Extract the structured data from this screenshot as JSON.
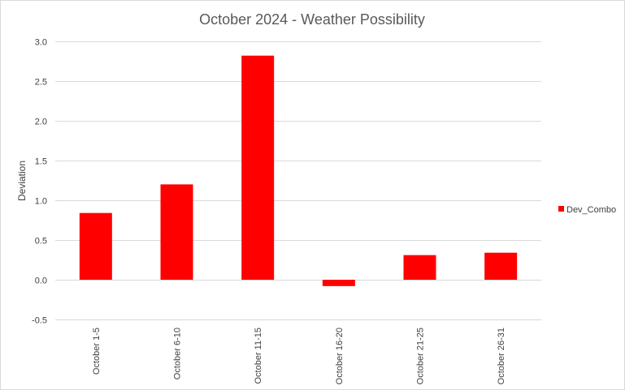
{
  "chart_data": {
    "type": "bar",
    "title": "October 2024 - Weather Possibility",
    "xlabel": "",
    "ylabel": "Deviation",
    "categories": [
      "October 1-5",
      "October 6-10",
      "October 11-15",
      "October 16-20",
      "October 21-25",
      "October 26-31"
    ],
    "series": [
      {
        "name": "Dev_Combo",
        "values": [
          0.84,
          1.2,
          2.82,
          -0.08,
          0.31,
          0.34
        ]
      }
    ],
    "ylim": [
      -0.5,
      3.0
    ],
    "yticks": [
      "3.0",
      "2.5",
      "2.0",
      "1.5",
      "1.0",
      "0.5",
      "0.0",
      "-0.5"
    ],
    "grid": true,
    "legend": "right",
    "colors": {
      "bar": "#ff0000",
      "grid": "#d9d9d9"
    }
  }
}
